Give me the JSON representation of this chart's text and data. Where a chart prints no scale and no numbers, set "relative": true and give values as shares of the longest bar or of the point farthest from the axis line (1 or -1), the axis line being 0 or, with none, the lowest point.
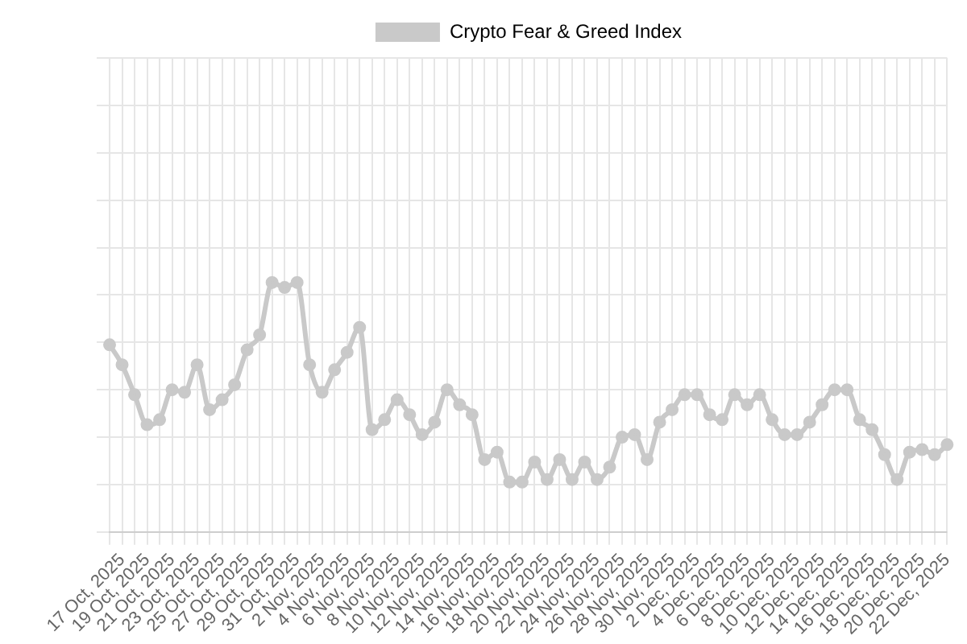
{
  "chart_data": {
    "type": "line",
    "relative": true,
    "grid": true,
    "legend": "top",
    "marker": "circle",
    "line_style": "solid",
    "categories": [
      null,
      "17 Oct, 2025",
      null,
      "19 Oct, 2025",
      null,
      "21 Oct, 2025",
      null,
      "23 Oct, 2025",
      null,
      "25 Oct, 2025",
      null,
      "27 Oct, 2025",
      null,
      "29 Oct, 2025",
      null,
      "31 Oct, 2025",
      null,
      "2 Nov, 2025",
      null,
      "4 Nov, 2025",
      null,
      "6 Nov, 2025",
      null,
      "8 Nov, 2025",
      null,
      "10 Nov, 2025",
      null,
      "12 Nov, 2025",
      null,
      "14 Nov, 2025",
      null,
      "16 Nov, 2025",
      null,
      "18 Nov, 2025",
      null,
      "20 Nov, 2025",
      null,
      "22 Nov, 2025",
      null,
      "24 Nov, 2025",
      null,
      "26 Nov, 2025",
      null,
      "28 Nov, 2025",
      null,
      "30 Nov, 2025",
      null,
      "2 Dec, 2025",
      null,
      "4 Dec, 2025",
      null,
      "6 Dec, 2025",
      null,
      "8 Dec, 2025",
      null,
      "10 Dec, 2025",
      null,
      "12 Dec, 2025",
      null,
      "14 Dec, 2025",
      null,
      "16 Dec, 2025",
      null,
      "18 Dec, 2025",
      null,
      "20 Dec, 2025",
      null,
      "22 Dec, 2025"
    ],
    "series": [
      {
        "name": "Crypto Fear & Greed Index",
        "color": "#c9c9c9",
        "values": [
          0.75,
          0.67,
          0.55,
          0.43,
          0.45,
          0.57,
          0.56,
          0.67,
          0.49,
          0.53,
          0.59,
          0.73,
          0.79,
          1,
          0.98,
          1,
          0.67,
          0.56,
          0.65,
          0.72,
          0.82,
          0.41,
          0.45,
          0.53,
          0.47,
          0.39,
          0.44,
          0.57,
          0.51,
          0.47,
          0.29,
          0.32,
          0.2,
          0.2,
          0.28,
          0.21,
          0.29,
          0.21,
          0.28,
          0.21,
          0.26,
          0.38,
          0.39,
          0.29,
          0.44,
          0.49,
          0.55,
          0.55,
          0.47,
          0.45,
          0.55,
          0.51,
          0.55,
          0.45,
          0.39,
          0.39,
          0.44,
          0.51,
          0.57,
          0.57,
          0.45,
          0.41,
          0.31,
          0.21,
          0.32,
          0.33,
          0.31,
          0.35
        ]
      }
    ]
  }
}
